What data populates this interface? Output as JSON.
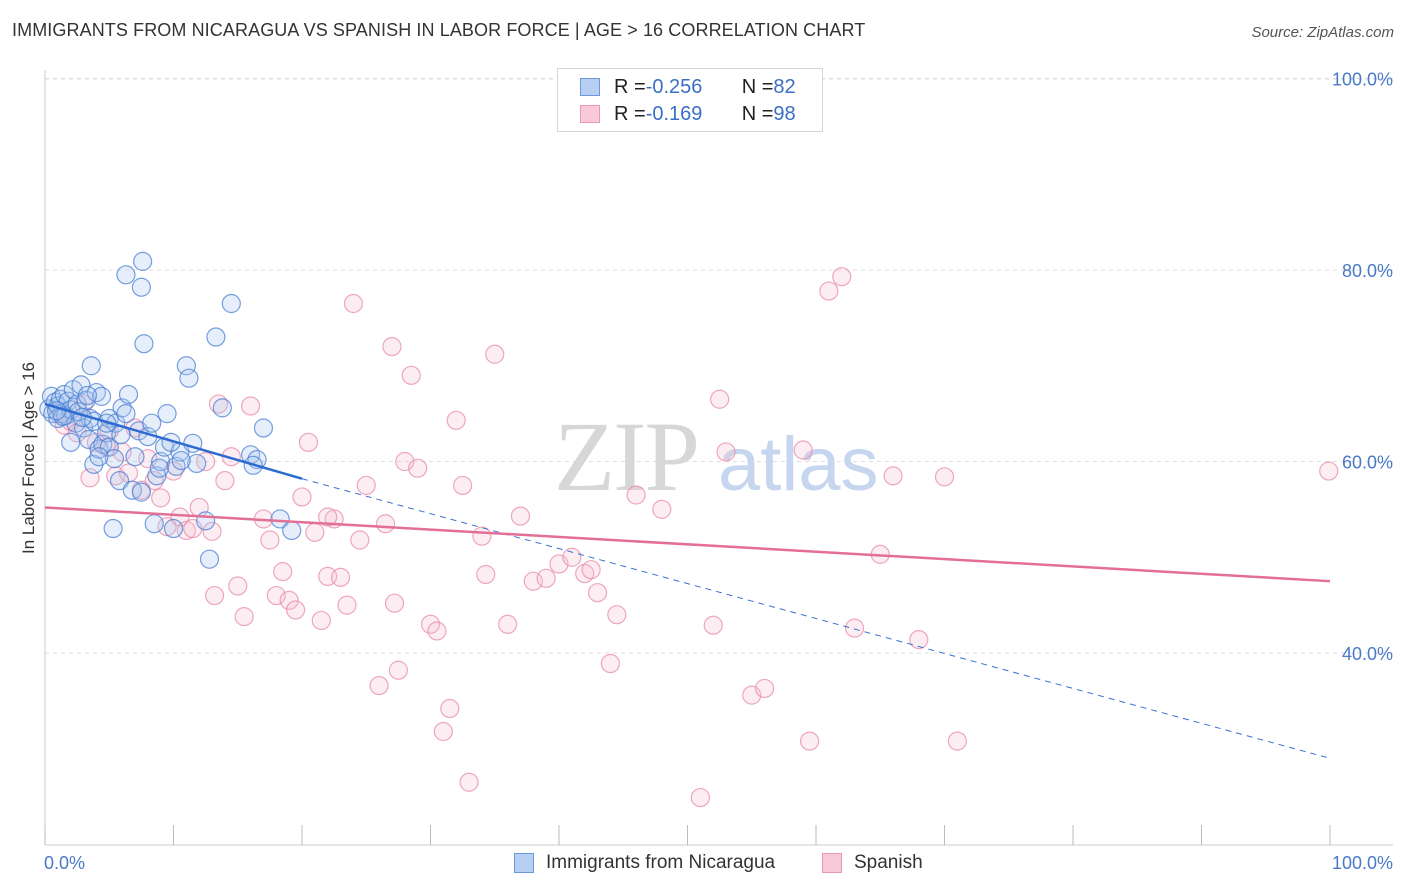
{
  "header": {
    "title": "IMMIGRANTS FROM NICARAGUA VS SPANISH IN LABOR FORCE | AGE > 16 CORRELATION CHART",
    "source": "Source: ZipAtlas.com"
  },
  "watermark": {
    "part1": "ZIP",
    "part2": "atlas"
  },
  "legend": {
    "rows": [
      {
        "r_label": "R = ",
        "r_value": "-0.256",
        "n_label": "N = ",
        "n_value": "82"
      },
      {
        "r_label": "R = ",
        "r_value": "-0.169",
        "n_label": "N = ",
        "n_value": "98"
      }
    ]
  },
  "bottom_legend": {
    "series1": "Immigrants from Nicaragua",
    "series2": "Spanish"
  },
  "colors": {
    "blue": "#3a72d0",
    "blue_fill": "#a9c6ee",
    "pink": "#e46f96",
    "pink_fill": "#f6bdd0",
    "grid": "#dddddd",
    "tick_text": "#4a79c7"
  },
  "chart_data": {
    "type": "scatter",
    "title": "IMMIGRANTS FROM NICARAGUA VS SPANISH IN LABOR FORCE | AGE > 16 CORRELATION CHART",
    "xlabel": "",
    "ylabel": "In Labor Force | Age > 16",
    "xlim": [
      0,
      100
    ],
    "ylim": [
      20,
      104
    ],
    "x_tick_labels": [
      "0.0%",
      "100.0%"
    ],
    "y_ticks": [
      40,
      60,
      80,
      100
    ],
    "y_tick_labels": [
      "40.0%",
      "60.0%",
      "80.0%",
      "100.0%"
    ],
    "series": [
      {
        "name": "Immigrants from Nicaragua",
        "color": "#3a72d0",
        "r": -0.256,
        "n": 82,
        "trend": {
          "x0": 0,
          "y0": 66.0,
          "x1": 20,
          "y1": 58.2,
          "dash_to_x": 100,
          "dash_to_y": 29.0
        },
        "points": [
          [
            0.3,
            65.5
          ],
          [
            0.5,
            66.8
          ],
          [
            0.6,
            65.0
          ],
          [
            0.8,
            66.2
          ],
          [
            1.0,
            65.8
          ],
          [
            1.0,
            64.5
          ],
          [
            1.2,
            66.5
          ],
          [
            1.3,
            65.0
          ],
          [
            1.5,
            67.0
          ],
          [
            1.6,
            64.8
          ],
          [
            1.8,
            66.3
          ],
          [
            2.0,
            62.0
          ],
          [
            2.0,
            65.4
          ],
          [
            2.2,
            67.5
          ],
          [
            2.4,
            64.0
          ],
          [
            2.5,
            66.0
          ],
          [
            2.6,
            65.2
          ],
          [
            2.8,
            68.0
          ],
          [
            3.0,
            63.5
          ],
          [
            3.2,
            66.4
          ],
          [
            3.4,
            62.3
          ],
          [
            3.5,
            64.5
          ],
          [
            3.6,
            70.0
          ],
          [
            3.8,
            59.7
          ],
          [
            3.8,
            64.2
          ],
          [
            4.0,
            67.2
          ],
          [
            4.2,
            61.3
          ],
          [
            4.4,
            66.8
          ],
          [
            4.5,
            61.8
          ],
          [
            4.8,
            63.0
          ],
          [
            5.0,
            64.5
          ],
          [
            5.0,
            61.5
          ],
          [
            5.3,
            53.0
          ],
          [
            5.4,
            60.3
          ],
          [
            5.5,
            64.0
          ],
          [
            5.8,
            58.0
          ],
          [
            6.0,
            65.6
          ],
          [
            6.3,
            65.0
          ],
          [
            6.5,
            67.0
          ],
          [
            6.8,
            57.0
          ],
          [
            7.0,
            60.5
          ],
          [
            7.3,
            63.2
          ],
          [
            7.5,
            56.8
          ],
          [
            7.7,
            72.3
          ],
          [
            8.0,
            62.6
          ],
          [
            8.3,
            64.0
          ],
          [
            8.5,
            53.5
          ],
          [
            8.7,
            58.5
          ],
          [
            9.0,
            60.0
          ],
          [
            9.3,
            61.5
          ],
          [
            9.5,
            65.0
          ],
          [
            10.0,
            53.0
          ],
          [
            10.2,
            59.5
          ],
          [
            10.5,
            61.0
          ],
          [
            11.0,
            70.0
          ],
          [
            11.2,
            68.7
          ],
          [
            11.5,
            61.9
          ],
          [
            11.8,
            59.8
          ],
          [
            12.5,
            53.8
          ],
          [
            12.8,
            49.8
          ],
          [
            13.3,
            73.0
          ],
          [
            13.8,
            65.6
          ],
          [
            14.5,
            76.5
          ],
          [
            16.0,
            60.7
          ],
          [
            16.5,
            60.2
          ],
          [
            16.2,
            59.6
          ],
          [
            18.3,
            54.0
          ],
          [
            19.2,
            52.8
          ],
          [
            6.3,
            79.5
          ],
          [
            7.6,
            80.9
          ],
          [
            7.5,
            78.2
          ],
          [
            4.2,
            60.5
          ],
          [
            2.9,
            64.6
          ],
          [
            3.3,
            66.9
          ],
          [
            1.4,
            64.7
          ],
          [
            0.9,
            65.3
          ],
          [
            4.8,
            64.0
          ],
          [
            5.9,
            62.8
          ],
          [
            8.9,
            59.3
          ],
          [
            10.6,
            60.1
          ],
          [
            17.0,
            63.5
          ],
          [
            9.8,
            62.0
          ]
        ]
      },
      {
        "name": "Spanish",
        "color": "#e46f96",
        "r": -0.169,
        "n": 98,
        "trend": {
          "x0": 0,
          "y0": 55.2,
          "x1": 100,
          "y1": 47.5
        },
        "points": [
          [
            1.0,
            65.0
          ],
          [
            1.5,
            63.8
          ],
          [
            2.0,
            64.2
          ],
          [
            2.5,
            63.0
          ],
          [
            3.0,
            66.0
          ],
          [
            4.0,
            62.0
          ],
          [
            4.8,
            61.5
          ],
          [
            5.5,
            58.5
          ],
          [
            6.0,
            61.0
          ],
          [
            6.5,
            58.8
          ],
          [
            7.0,
            63.5
          ],
          [
            7.5,
            57.0
          ],
          [
            8.0,
            60.3
          ],
          [
            8.5,
            58.0
          ],
          [
            9.0,
            56.2
          ],
          [
            9.5,
            53.2
          ],
          [
            10.0,
            59.0
          ],
          [
            10.5,
            54.2
          ],
          [
            11.0,
            52.8
          ],
          [
            11.5,
            53.0
          ],
          [
            12.0,
            55.2
          ],
          [
            12.5,
            60.0
          ],
          [
            13.0,
            52.7
          ],
          [
            13.5,
            66.0
          ],
          [
            14.0,
            58.0
          ],
          [
            14.5,
            60.5
          ],
          [
            15.0,
            47.0
          ],
          [
            15.5,
            43.8
          ],
          [
            16.0,
            65.8
          ],
          [
            17.0,
            54.0
          ],
          [
            17.5,
            51.8
          ],
          [
            18.0,
            46.0
          ],
          [
            18.5,
            48.5
          ],
          [
            19.0,
            45.5
          ],
          [
            19.5,
            44.5
          ],
          [
            20.0,
            56.3
          ],
          [
            20.5,
            62.0
          ],
          [
            21.0,
            52.6
          ],
          [
            21.5,
            43.4
          ],
          [
            22.0,
            48.0
          ],
          [
            22.5,
            54.0
          ],
          [
            23.0,
            47.9
          ],
          [
            23.5,
            45.0
          ],
          [
            24.0,
            76.5
          ],
          [
            24.5,
            51.8
          ],
          [
            25.0,
            57.5
          ],
          [
            26.0,
            36.6
          ],
          [
            26.5,
            53.5
          ],
          [
            27.0,
            72.0
          ],
          [
            27.5,
            38.2
          ],
          [
            28.0,
            60.0
          ],
          [
            28.5,
            69.0
          ],
          [
            29.0,
            59.3
          ],
          [
            30.0,
            43.0
          ],
          [
            30.5,
            42.3
          ],
          [
            31.0,
            31.8
          ],
          [
            31.5,
            34.2
          ],
          [
            32.0,
            64.3
          ],
          [
            32.5,
            57.5
          ],
          [
            33.0,
            26.5
          ],
          [
            34.0,
            52.2
          ],
          [
            35.0,
            71.2
          ],
          [
            36.0,
            43.0
          ],
          [
            37.0,
            54.3
          ],
          [
            38.0,
            47.5
          ],
          [
            39.0,
            47.8
          ],
          [
            40.0,
            49.3
          ],
          [
            41.0,
            50.0
          ],
          [
            42.0,
            48.3
          ],
          [
            42.5,
            48.7
          ],
          [
            43.0,
            46.3
          ],
          [
            44.0,
            38.9
          ],
          [
            44.5,
            44.0
          ],
          [
            46.0,
            56.5
          ],
          [
            48.0,
            55.0
          ],
          [
            51.0,
            24.9
          ],
          [
            52.0,
            42.9
          ],
          [
            52.5,
            66.5
          ],
          [
            53.0,
            61.0
          ],
          [
            55.0,
            35.6
          ],
          [
            56.0,
            36.3
          ],
          [
            59.0,
            61.2
          ],
          [
            59.5,
            30.8
          ],
          [
            61.0,
            77.8
          ],
          [
            62.0,
            79.3
          ],
          [
            63.0,
            42.6
          ],
          [
            65.0,
            50.3
          ],
          [
            66.0,
            58.5
          ],
          [
            68.0,
            41.4
          ],
          [
            70.0,
            58.4
          ],
          [
            71.0,
            30.8
          ],
          [
            99.9,
            59.0
          ],
          [
            3.5,
            58.3
          ],
          [
            5.0,
            63.2
          ],
          [
            13.2,
            46.0
          ],
          [
            22.0,
            54.2
          ],
          [
            27.2,
            45.2
          ],
          [
            34.3,
            48.2
          ]
        ]
      }
    ]
  }
}
